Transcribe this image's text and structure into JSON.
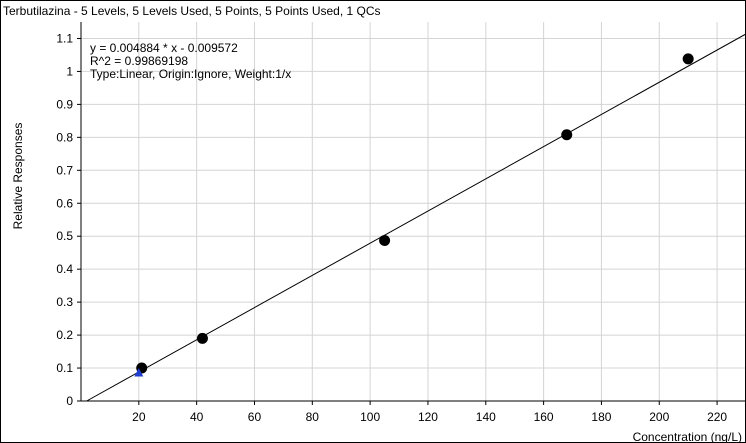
{
  "chart_data": {
    "type": "scatter",
    "title": "Terbutilazina - 5 Levels, 5 Levels Used, 5 Points, 5 Points Used, 1 QCs",
    "xlabel": "Concentration (ng/L)",
    "ylabel": "Relative Responses",
    "xlim": [
      0,
      230
    ],
    "ylim": [
      0,
      1.15
    ],
    "x_ticks": [
      20,
      40,
      60,
      80,
      100,
      120,
      140,
      160,
      180,
      200,
      220
    ],
    "y_ticks": [
      0,
      0.1,
      0.2,
      0.3,
      0.4,
      0.5,
      0.6,
      0.7,
      0.8,
      0.9,
      1,
      1.1
    ],
    "grid": true,
    "series": [
      {
        "name": "",
        "type": "scatter",
        "marker": "circle",
        "color": "#000000",
        "x": [
          21,
          42,
          105,
          168,
          210
        ],
        "y": [
          0.1,
          0.19,
          0.487,
          0.808,
          1.038
        ]
      },
      {
        "name": "",
        "type": "scatter",
        "marker": "triangle",
        "color": "#1f3fd1",
        "x": [
          20
        ],
        "y": [
          0.085
        ]
      }
    ],
    "fit": {
      "slope": 0.004884,
      "intercept": -0.009572,
      "type": "linear"
    },
    "annotations": [
      "y = 0.004884 * x  - 0.009572",
      "R^2 = 0.99869198",
      "Type:Linear, Origin:Ignore, Weight:1/x"
    ]
  }
}
